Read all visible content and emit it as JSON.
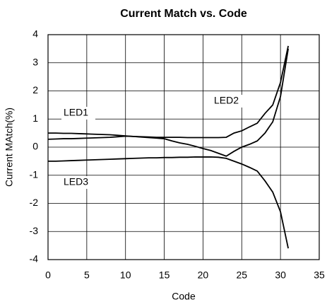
{
  "chart_data": {
    "type": "line",
    "title": "Current Match vs. Code",
    "x_label": "Code",
    "y_label": "Current MAtch(%)",
    "x": [
      0,
      1,
      2,
      3,
      4,
      5,
      6,
      7,
      8,
      9,
      10,
      11,
      12,
      13,
      14,
      15,
      16,
      17,
      18,
      19,
      20,
      21,
      22,
      23,
      24,
      25,
      26,
      27,
      28,
      29,
      30,
      31
    ],
    "series": [
      {
        "name": "LED1",
        "color": "#000000",
        "values": [
          0.5,
          0.5,
          0.49,
          0.49,
          0.48,
          0.47,
          0.46,
          0.45,
          0.44,
          0.42,
          0.4,
          0.38,
          0.36,
          0.34,
          0.32,
          0.3,
          0.22,
          0.15,
          0.1,
          0.03,
          -0.05,
          -0.12,
          -0.22,
          -0.32,
          -0.15,
          0,
          0.1,
          0.22,
          0.5,
          0.9,
          1.8,
          3.5
        ]
      },
      {
        "name": "LED2",
        "color": "#000000",
        "values": [
          0.28,
          0.29,
          0.3,
          0.3,
          0.31,
          0.32,
          0.33,
          0.34,
          0.35,
          0.37,
          0.39,
          0.38,
          0.37,
          0.36,
          0.35,
          0.35,
          0.35,
          0.35,
          0.34,
          0.34,
          0.34,
          0.34,
          0.34,
          0.35,
          0.5,
          0.58,
          0.72,
          0.85,
          1.2,
          1.5,
          2.3,
          3.6
        ]
      },
      {
        "name": "LED3",
        "color": "#000000",
        "values": [
          -0.5,
          -0.5,
          -0.49,
          -0.48,
          -0.47,
          -0.46,
          -0.45,
          -0.44,
          -0.43,
          -0.42,
          -0.41,
          -0.4,
          -0.39,
          -0.38,
          -0.38,
          -0.37,
          -0.37,
          -0.36,
          -0.36,
          -0.35,
          -0.35,
          -0.35,
          -0.36,
          -0.4,
          -0.5,
          -0.6,
          -0.72,
          -0.85,
          -1.2,
          -1.6,
          -2.3,
          -3.6
        ]
      }
    ],
    "xlim": [
      0,
      35
    ],
    "xticks": [
      0,
      5,
      10,
      15,
      20,
      25,
      30,
      35
    ],
    "ylim": [
      -4,
      4
    ],
    "yticks": [
      -4,
      -3,
      -2,
      -1,
      0,
      1,
      2,
      3,
      4
    ],
    "grid": true
  }
}
